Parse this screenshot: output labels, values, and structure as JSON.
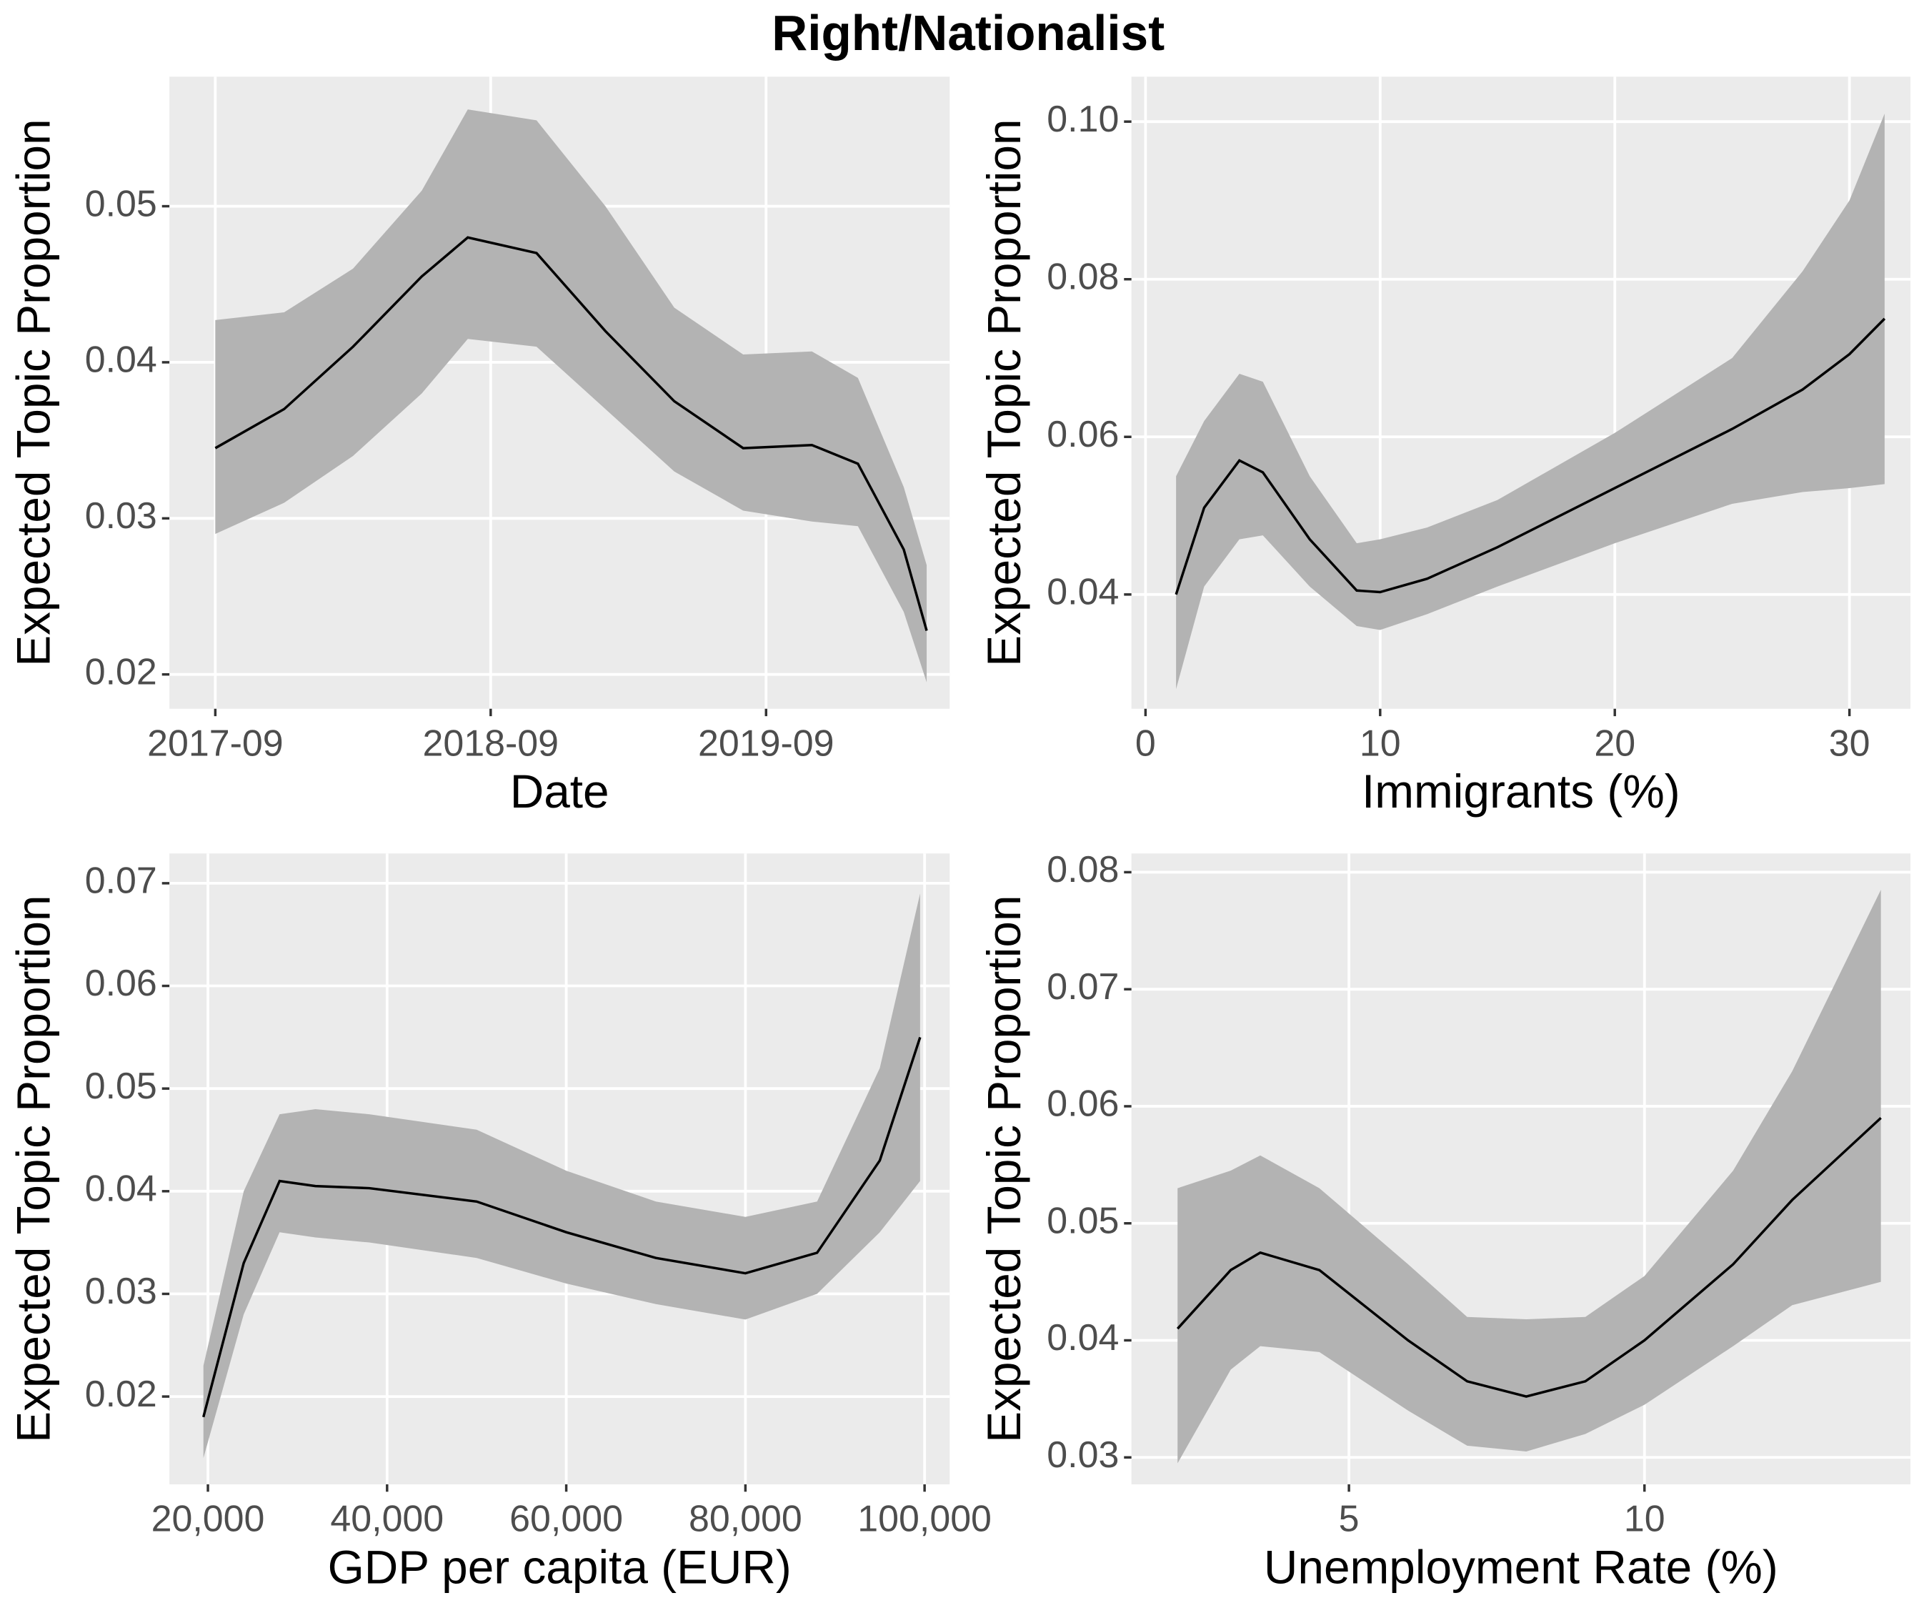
{
  "title": "Right/Nationalist",
  "chart_data": [
    {
      "type": "line",
      "x_label": "Date",
      "y_label": "Expected Topic Proportion",
      "x": [
        "2017-09",
        "2017-12",
        "2018-03",
        "2018-06",
        "2018-08",
        "2018-11",
        "2019-02",
        "2019-05",
        "2019-08",
        "2019-11",
        "2020-01",
        "2020-03",
        "2020-04"
      ],
      "values": [
        0.0345,
        0.037,
        0.041,
        0.0455,
        0.048,
        0.047,
        0.042,
        0.0375,
        0.0345,
        0.0347,
        0.0335,
        0.028,
        0.0228
      ],
      "lower": [
        0.029,
        0.031,
        0.034,
        0.038,
        0.0415,
        0.041,
        0.037,
        0.033,
        0.0305,
        0.0298,
        0.0295,
        0.024,
        0.0195
      ],
      "upper": [
        0.0427,
        0.0432,
        0.046,
        0.051,
        0.0562,
        0.0555,
        0.05,
        0.0435,
        0.0405,
        0.0407,
        0.039,
        0.032,
        0.027
      ],
      "xlim": [
        "2017-07",
        "2020-05"
      ],
      "ylim": [
        0.0178,
        0.0583
      ],
      "xticks": [
        "2017-09",
        "2018-09",
        "2019-09"
      ],
      "yticks": [
        0.02,
        0.03,
        0.04,
        0.05
      ],
      "color": "#000000",
      "band_color": "#b3b3b3",
      "background": "#ebebeb",
      "grid": true
    },
    {
      "type": "line",
      "x_label": "Immigrants (%)",
      "y_label": "Expected Topic Proportion",
      "x": [
        1.3,
        2.5,
        4,
        5,
        7,
        9,
        10,
        12,
        15,
        20,
        25,
        28,
        30,
        31.5
      ],
      "values": [
        0.04,
        0.051,
        0.057,
        0.0555,
        0.047,
        0.0405,
        0.0403,
        0.042,
        0.046,
        0.0535,
        0.061,
        0.066,
        0.0705,
        0.075
      ],
      "lower": [
        0.028,
        0.041,
        0.047,
        0.0475,
        0.041,
        0.036,
        0.0355,
        0.0375,
        0.041,
        0.0465,
        0.0515,
        0.053,
        0.0535,
        0.054
      ],
      "upper": [
        0.055,
        0.062,
        0.068,
        0.067,
        0.055,
        0.0465,
        0.047,
        0.0485,
        0.052,
        0.0605,
        0.07,
        0.081,
        0.09,
        0.101
      ],
      "xlim": [
        -0.6,
        32.6
      ],
      "ylim": [
        0.0255,
        0.1057
      ],
      "xticks": [
        0,
        10,
        20,
        30
      ],
      "yticks": [
        0.04,
        0.06,
        0.08,
        {
          "value": 0.1,
          "label": "0.10"
        }
      ],
      "color": "#000000",
      "band_color": "#b3b3b3",
      "background": "#ebebeb",
      "grid": true
    },
    {
      "type": "line",
      "x_label": "GDP per capita (EUR)",
      "y_label": "Expected Topic Proportion",
      "x": [
        19500,
        24000,
        28000,
        32000,
        38000,
        50000,
        60000,
        70000,
        80000,
        88000,
        95000,
        99500
      ],
      "values": [
        0.018,
        0.033,
        0.041,
        0.0405,
        0.0403,
        0.039,
        0.036,
        0.0335,
        0.032,
        0.034,
        0.043,
        0.055
      ],
      "lower": [
        0.014,
        0.028,
        0.036,
        0.0355,
        0.035,
        0.0335,
        0.031,
        0.029,
        0.0275,
        0.03,
        0.036,
        0.041
      ],
      "upper": [
        0.023,
        0.04,
        0.0475,
        0.048,
        0.0475,
        0.046,
        0.042,
        0.039,
        0.0375,
        0.039,
        0.052,
        0.069
      ],
      "xlim": [
        15700,
        102800
      ],
      "ylim": [
        0.01145,
        0.0729
      ],
      "xticks": [
        {
          "value": 20000,
          "label": "20,000"
        },
        {
          "value": 40000,
          "label": "40,000"
        },
        {
          "value": 60000,
          "label": "60,000"
        },
        {
          "value": 80000,
          "label": "80,000"
        },
        {
          "value": 100000,
          "label": "100,000"
        }
      ],
      "yticks": [
        0.02,
        0.03,
        0.04,
        0.05,
        0.06,
        0.07
      ],
      "color": "#000000",
      "band_color": "#b3b3b3",
      "background": "#ebebeb",
      "grid": true
    },
    {
      "type": "line",
      "x_label": "Unemployment Rate (%)",
      "y_label": "Expected Topic Proportion",
      "x": [
        2.1,
        3,
        3.5,
        4.5,
        6,
        7,
        8,
        9,
        10,
        11.5,
        12.5,
        14
      ],
      "values": [
        0.041,
        0.046,
        0.0475,
        0.046,
        0.04,
        0.0365,
        0.0352,
        0.0365,
        0.04,
        0.0465,
        0.052,
        0.059
      ],
      "lower": [
        0.0295,
        0.0375,
        0.0395,
        0.039,
        0.034,
        0.031,
        0.0305,
        0.032,
        0.0345,
        0.0395,
        0.043,
        0.045
      ],
      "upper": [
        0.053,
        0.0545,
        0.0558,
        0.053,
        0.0465,
        0.042,
        0.0418,
        0.042,
        0.0455,
        0.0545,
        0.063,
        0.0785
      ],
      "xlim": [
        1.32,
        14.5
      ],
      "ylim": [
        0.0277,
        0.0816
      ],
      "xticks": [
        5,
        10
      ],
      "yticks": [
        0.03,
        0.04,
        0.05,
        0.06,
        0.07,
        0.08
      ],
      "color": "#000000",
      "band_color": "#b3b3b3",
      "background": "#ebebeb",
      "grid": true
    }
  ]
}
